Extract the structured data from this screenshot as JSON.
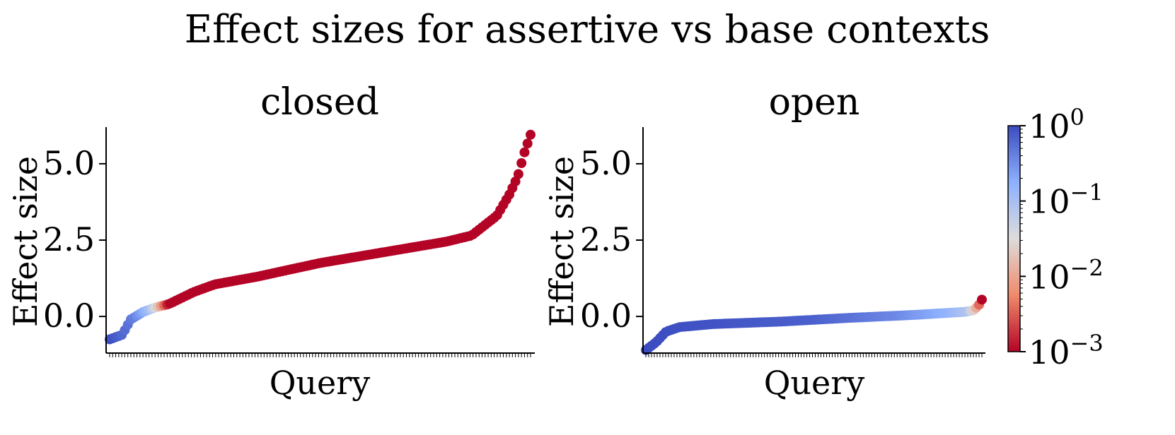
{
  "figure": {
    "title": "Effect sizes for assertive vs base contexts"
  },
  "chart_data": [
    {
      "type": "scatter",
      "title": "closed",
      "xlabel": "Query",
      "ylabel": "Effect size",
      "ylim": [
        -1.2,
        6.2
      ],
      "yticks": [
        0.0,
        2.5,
        5.0
      ],
      "ytick_labels": [
        "0.0",
        "2.5",
        "5.0"
      ],
      "n_points": 140,
      "sorted_values_min": -0.75,
      "sorted_values_max": 5.95,
      "color_encoding": "p-value (log scale)",
      "curve_keypoints": [
        {
          "q": 0.0,
          "y": -0.75
        },
        {
          "q": 0.03,
          "y": -0.6
        },
        {
          "q": 0.05,
          "y": -0.1
        },
        {
          "q": 0.08,
          "y": 0.15
        },
        {
          "q": 0.11,
          "y": 0.3
        },
        {
          "q": 0.14,
          "y": 0.4
        },
        {
          "q": 0.2,
          "y": 0.8
        },
        {
          "q": 0.25,
          "y": 1.05
        },
        {
          "q": 0.35,
          "y": 1.3
        },
        {
          "q": 0.5,
          "y": 1.75
        },
        {
          "q": 0.65,
          "y": 2.1
        },
        {
          "q": 0.8,
          "y": 2.45
        },
        {
          "q": 0.86,
          "y": 2.65
        },
        {
          "q": 0.92,
          "y": 3.3
        },
        {
          "q": 0.95,
          "y": 4.0
        },
        {
          "q": 0.97,
          "y": 4.6
        },
        {
          "q": 0.985,
          "y": 5.35
        },
        {
          "q": 1.0,
          "y": 5.95
        }
      ],
      "pvalue_keypoints": [
        {
          "q": 0.0,
          "logp": 0.0
        },
        {
          "q": 0.06,
          "logp": -0.4
        },
        {
          "q": 0.09,
          "logp": -0.9
        },
        {
          "q": 0.11,
          "logp": -1.5
        },
        {
          "q": 0.125,
          "logp": -2.2
        },
        {
          "q": 0.14,
          "logp": -3.0
        },
        {
          "q": 1.0,
          "logp": -3.0
        }
      ]
    },
    {
      "type": "scatter",
      "title": "open",
      "xlabel": "Query",
      "ylabel": "Effect size",
      "ylim": [
        -1.2,
        6.2
      ],
      "yticks": [
        0.0,
        2.5,
        5.0
      ],
      "ytick_labels": [
        "0.0",
        "2.5",
        "5.0"
      ],
      "n_points": 120,
      "sorted_values_min": -1.1,
      "sorted_values_max": 0.55,
      "color_encoding": "p-value (log scale)",
      "curve_keypoints": [
        {
          "q": 0.0,
          "y": -1.1
        },
        {
          "q": 0.03,
          "y": -0.85
        },
        {
          "q": 0.06,
          "y": -0.5
        },
        {
          "q": 0.1,
          "y": -0.35
        },
        {
          "q": 0.2,
          "y": -0.25
        },
        {
          "q": 0.4,
          "y": -0.17
        },
        {
          "q": 0.6,
          "y": -0.05
        },
        {
          "q": 0.8,
          "y": 0.05
        },
        {
          "q": 0.95,
          "y": 0.15
        },
        {
          "q": 0.975,
          "y": 0.2
        },
        {
          "q": 0.99,
          "y": 0.35
        },
        {
          "q": 1.0,
          "y": 0.55
        }
      ],
      "pvalue_keypoints": [
        {
          "q": 0.0,
          "logp": 0.0
        },
        {
          "q": 0.5,
          "logp": -0.15
        },
        {
          "q": 0.75,
          "logp": -0.45
        },
        {
          "q": 0.9,
          "logp": -0.8
        },
        {
          "q": 0.96,
          "logp": -1.1
        },
        {
          "q": 0.985,
          "logp": -2.0
        },
        {
          "q": 1.0,
          "logp": -3.0
        }
      ]
    }
  ],
  "colorbar": {
    "scale": "log",
    "range": [
      0.001,
      1
    ],
    "ticks": [
      {
        "base": "10",
        "exp": "0",
        "value": 1
      },
      {
        "base": "10",
        "exp": "−1",
        "value": 0.1
      },
      {
        "base": "10",
        "exp": "−2",
        "value": 0.01
      },
      {
        "base": "10",
        "exp": "−3",
        "value": 0.001
      }
    ],
    "colormap": "coolwarm_r",
    "stops": [
      {
        "t": 0.0,
        "color": "#b40426"
      },
      {
        "t": 0.25,
        "color": "#f08a6c"
      },
      {
        "t": 0.5,
        "color": "#dddcdc"
      },
      {
        "t": 0.75,
        "color": "#8db0fe"
      },
      {
        "t": 1.0,
        "color": "#3b4cc0"
      }
    ]
  }
}
